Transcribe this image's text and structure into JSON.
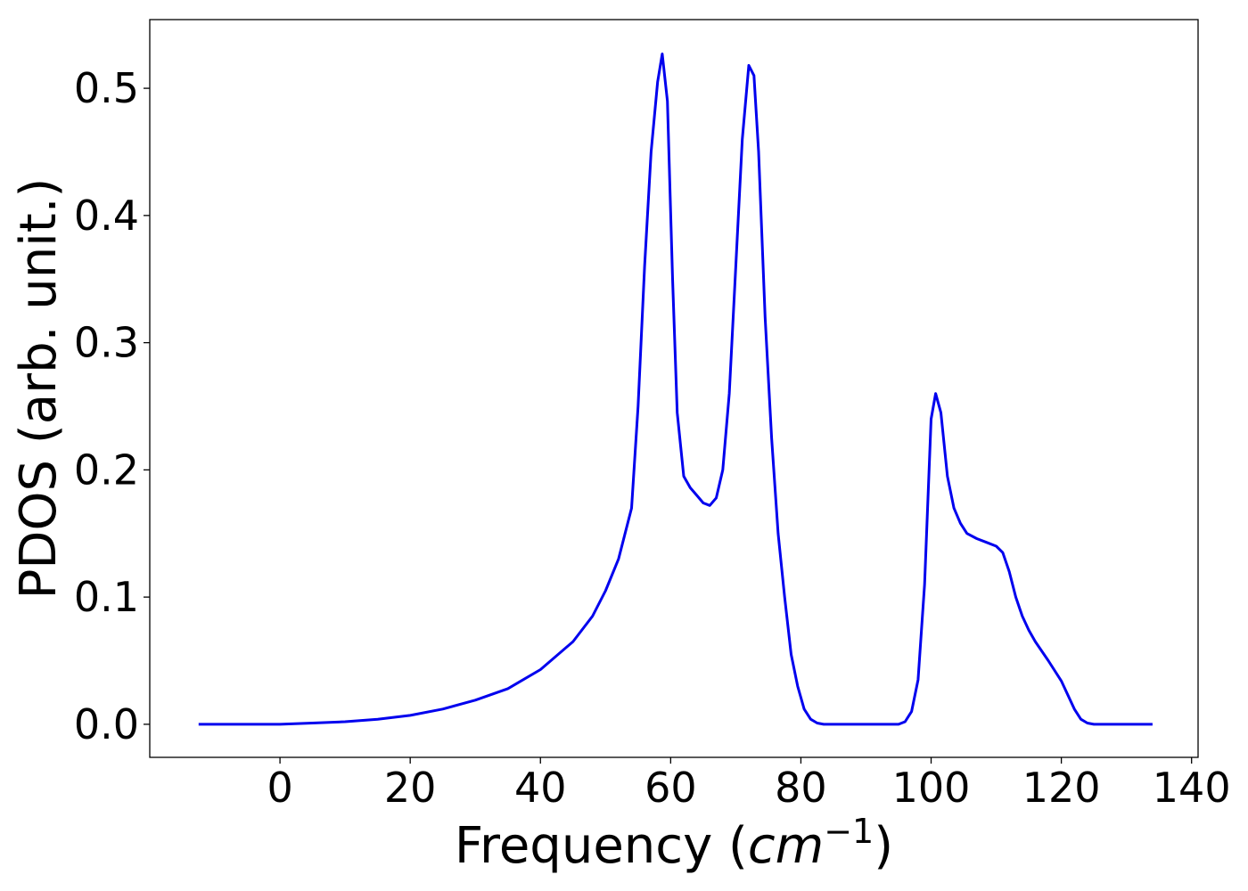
{
  "chart_data": {
    "type": "line",
    "title": "",
    "xlabel": "Frequency (",
    "xlabel_math": "cm",
    "xlabel_exp": "−1",
    "xlabel_close": ")",
    "ylabel": "PDOS (arb. unit.)",
    "xlim": [
      -20,
      141
    ],
    "ylim": [
      -0.026,
      0.554
    ],
    "xticks": [
      0,
      20,
      40,
      60,
      80,
      100,
      120,
      140
    ],
    "xtick_labels": [
      "0",
      "20",
      "40",
      "60",
      "80",
      "100",
      "120",
      "140"
    ],
    "yticks": [
      0.0,
      0.1,
      0.2,
      0.3,
      0.4,
      0.5
    ],
    "ytick_labels": [
      "0.0",
      "0.1",
      "0.2",
      "0.3",
      "0.4",
      "0.5"
    ],
    "grid": false,
    "series": [
      {
        "color": "#0000ee",
        "x": [
          -12.5,
          -5,
          0,
          5,
          10,
          15,
          20,
          25,
          30,
          35,
          40,
          45,
          48,
          50,
          52,
          54,
          55,
          56,
          57,
          58,
          58.7,
          59.5,
          60.3,
          61,
          62,
          63,
          64,
          65,
          66,
          67,
          68,
          69,
          70,
          71,
          72,
          72.8,
          73.5,
          74.5,
          75.5,
          76.5,
          77.5,
          78.5,
          79.5,
          80.5,
          81.5,
          82.5,
          83.5,
          85,
          90,
          95,
          96,
          97,
          98,
          99,
          100,
          100.7,
          101.5,
          102.5,
          103.5,
          104.5,
          105.5,
          107,
          108.5,
          110,
          111,
          112,
          113,
          114,
          115,
          116,
          118,
          120,
          121,
          122,
          123,
          124,
          125,
          127,
          130,
          134
        ],
        "y": [
          0.0,
          0.0,
          0.0,
          0.001,
          0.002,
          0.004,
          0.007,
          0.012,
          0.019,
          0.028,
          0.043,
          0.065,
          0.085,
          0.105,
          0.13,
          0.17,
          0.25,
          0.36,
          0.45,
          0.505,
          0.527,
          0.49,
          0.35,
          0.245,
          0.195,
          0.186,
          0.18,
          0.174,
          0.172,
          0.178,
          0.2,
          0.26,
          0.36,
          0.46,
          0.518,
          0.51,
          0.45,
          0.32,
          0.225,
          0.15,
          0.1,
          0.055,
          0.03,
          0.012,
          0.004,
          0.001,
          0.0,
          0.0,
          0.0,
          0.0,
          0.002,
          0.01,
          0.035,
          0.11,
          0.24,
          0.26,
          0.245,
          0.195,
          0.17,
          0.158,
          0.15,
          0.146,
          0.143,
          0.14,
          0.135,
          0.12,
          0.1,
          0.085,
          0.074,
          0.065,
          0.05,
          0.034,
          0.023,
          0.012,
          0.004,
          0.001,
          0.0,
          0.0,
          0.0,
          0.0
        ]
      }
    ]
  }
}
